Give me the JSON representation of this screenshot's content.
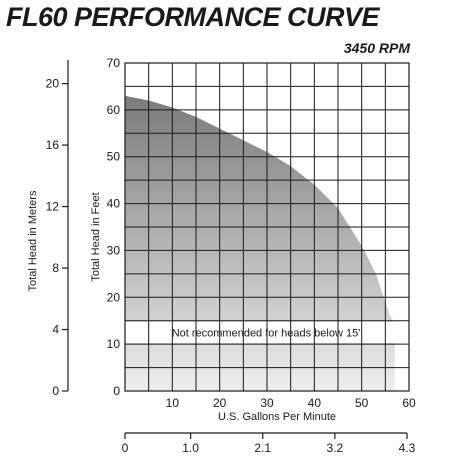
{
  "title": "FL60 PERFORMANCE CURVE",
  "speed": "3450 RPM",
  "chart_data": {
    "type": "area",
    "x_label": "U.S. Gallons Per Minute",
    "y_label": "Total Head in Feet",
    "y2_label": "Total Head in Meters",
    "x2_label": "",
    "xlim": [
      0,
      60
    ],
    "ylim": [
      0,
      70
    ],
    "y2lim": [
      0,
      21.34
    ],
    "x2lim": [
      0,
      4.3
    ],
    "grid": true,
    "x_ticks": [
      10,
      20,
      30,
      40,
      50,
      60
    ],
    "y_ticks": [
      0,
      10,
      20,
      30,
      40,
      50,
      60,
      70
    ],
    "y2_ticks": [
      0,
      4,
      8,
      12,
      16,
      20
    ],
    "x2_ticks": [
      "0",
      "1.0",
      "2.1",
      "3.2",
      "4.3"
    ],
    "x2_tick_values": [
      0,
      1.0,
      2.1,
      3.2,
      4.3
    ],
    "annotation": "Not recommended for heads below 15'",
    "annotation_y": 12.5,
    "series": [
      {
        "x": [
          0,
          5,
          10,
          15,
          20,
          25,
          30,
          35,
          40,
          45,
          50,
          53,
          55,
          56,
          57
        ],
        "y": [
          63,
          62,
          60.5,
          58.5,
          56,
          53.5,
          51,
          48,
          44,
          39,
          31,
          25,
          19,
          16,
          14.5
        ]
      }
    ]
  }
}
